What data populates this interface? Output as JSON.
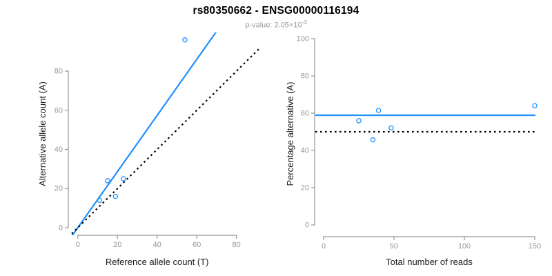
{
  "header": {
    "title": "rs80350662 - ENSG00000116194",
    "subtitle_prefix": "p-value: 2.05×10",
    "subtitle_exponent": "-3"
  },
  "colors": {
    "accent_blue": "#1E90FF",
    "axis_gray": "#969696",
    "label_dark": "#1a1a1a",
    "dotted_black": "#000000"
  },
  "chart_data": [
    {
      "type": "scatter",
      "name": "allele-counts-scatter",
      "xlabel": "Reference allele count (T)",
      "ylabel": "Alternative allele count (A)",
      "xticks": [
        0,
        20,
        40,
        60,
        80
      ],
      "yticks": [
        0,
        20,
        40,
        60,
        80
      ],
      "xlim": [
        -4.8,
        92.3
      ],
      "ylim": [
        -3.9,
        99.8
      ],
      "grid": false,
      "legend": "none",
      "points": [
        [
          11,
          14
        ],
        [
          15,
          24
        ],
        [
          19,
          16
        ],
        [
          23,
          25
        ],
        [
          54,
          96
        ]
      ],
      "lines": [
        {
          "kind": "abline",
          "intercept": 0,
          "slope": 1.4344,
          "style": "solid",
          "color_key": "accent_blue",
          "meaning": "fitted allelic ratio"
        },
        {
          "kind": "abline",
          "intercept": 0,
          "slope": 1,
          "style": "dotted",
          "color_key": "dotted_black",
          "meaning": "identity y=x (balanced 50/50)"
        }
      ]
    },
    {
      "type": "scatter",
      "name": "percentage-vs-coverage-scatter",
      "xlabel": "Total number of reads",
      "ylabel": "Percentage alternative (A)",
      "xticks": [
        0,
        50,
        100,
        150
      ],
      "yticks": [
        0,
        20,
        40,
        60,
        80,
        100
      ],
      "xlim": [
        -6.4,
        150.5
      ],
      "ylim": [
        -6.3,
        104.1
      ],
      "grid": false,
      "legend": "none",
      "points": [
        [
          25,
          56
        ],
        [
          35,
          45.7
        ],
        [
          39,
          61.5
        ],
        [
          48,
          52.1
        ],
        [
          150,
          64
        ]
      ],
      "lines": [
        {
          "kind": "hline",
          "y": 58.9,
          "style": "solid",
          "color_key": "accent_blue",
          "meaning": "mean percentage alternative"
        },
        {
          "kind": "hline",
          "y": 50,
          "style": "dotted",
          "color_key": "dotted_black",
          "meaning": "50% reference line"
        }
      ]
    }
  ]
}
